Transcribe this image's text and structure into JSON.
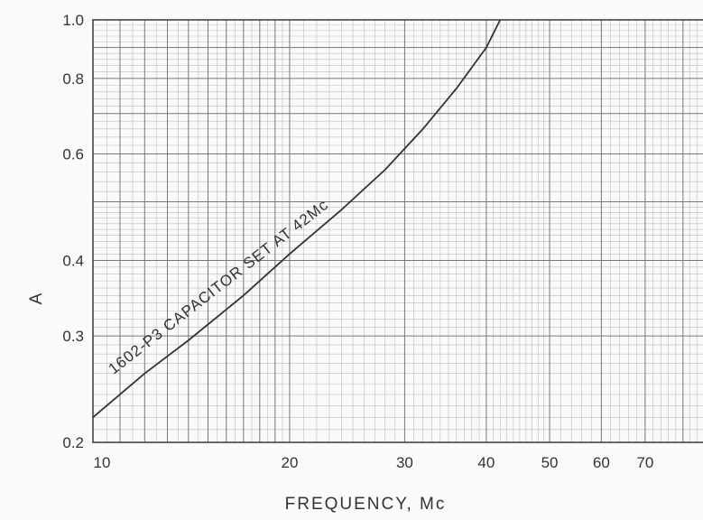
{
  "chart_data": {
    "type": "line",
    "xscale": "log",
    "yscale": "log",
    "xlabel": "FREQUENCY, Mc",
    "ylabel": "A",
    "xlim": [
      10,
      100
    ],
    "ylim": [
      0.2,
      1.0
    ],
    "xticks": [
      {
        "value": 10,
        "label": "10"
      },
      {
        "value": 20,
        "label": "20"
      },
      {
        "value": 30,
        "label": "30"
      },
      {
        "value": 40,
        "label": "40"
      },
      {
        "value": 50,
        "label": "50"
      },
      {
        "value": 60,
        "label": "60"
      },
      {
        "value": 70,
        "label": "70"
      }
    ],
    "yticks": [
      {
        "value": 0.2,
        "label": "0.2"
      },
      {
        "value": 0.3,
        "label": "0.3"
      },
      {
        "value": 0.4,
        "label": "0.4"
      },
      {
        "value": 0.6,
        "label": "0.6"
      },
      {
        "value": 0.8,
        "label": "0.8"
      },
      {
        "value": 1.0,
        "label": "1.0"
      }
    ],
    "grid": true,
    "series": [
      {
        "name": "1602-P3 CAPACITOR SET AT 42Mc",
        "x": [
          10,
          12,
          14,
          17,
          20,
          24,
          28,
          32,
          36,
          40,
          42
        ],
        "y": [
          0.22,
          0.26,
          0.295,
          0.35,
          0.41,
          0.485,
          0.565,
          0.66,
          0.77,
          0.9,
          1.0
        ]
      }
    ],
    "annotations": [
      {
        "text": "1602-P3 CAPACITOR SET AT 42Mc"
      }
    ]
  }
}
